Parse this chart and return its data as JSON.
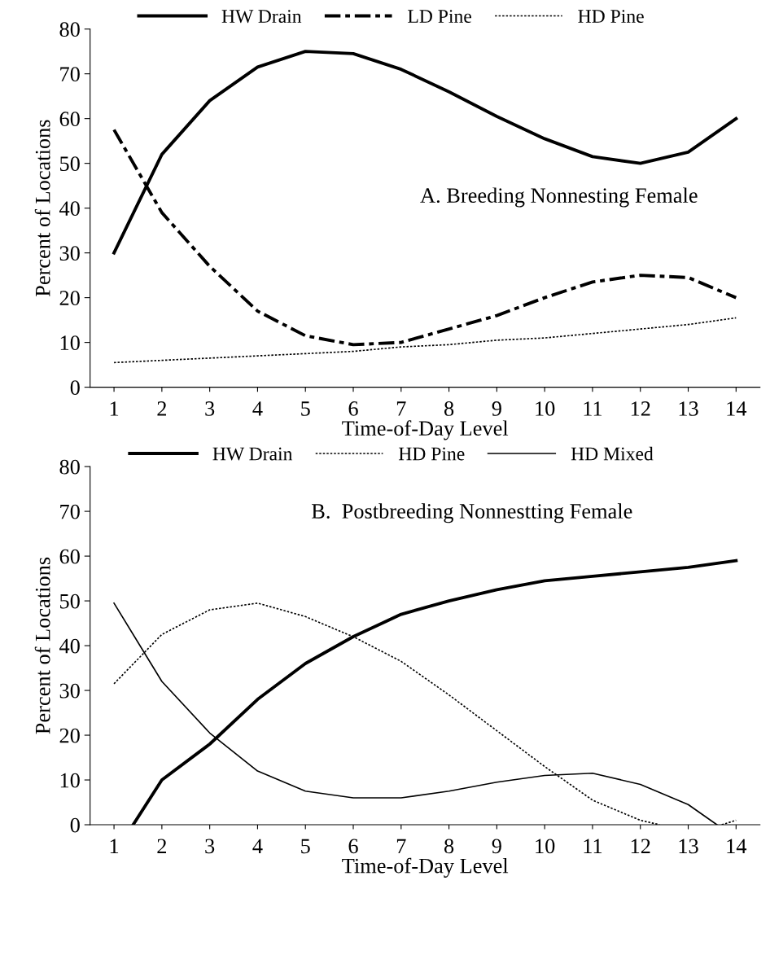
{
  "chart_data": [
    {
      "type": "line",
      "xlabel": "Time-of-Day Level",
      "ylabel": "Percent of Locations",
      "annotations": [
        "A. Breeding Nonnesting Female"
      ],
      "xlim": [
        0.5,
        14.5
      ],
      "xticks": [
        1,
        2,
        3,
        4,
        5,
        6,
        7,
        8,
        9,
        10,
        11,
        12,
        13,
        14
      ],
      "ylim": [
        0,
        80
      ],
      "yticks": [
        0,
        10,
        20,
        30,
        40,
        50,
        60,
        70,
        80
      ],
      "grid": false,
      "legend": "top",
      "marker": "none",
      "x": [
        1,
        2,
        3,
        4,
        5,
        6,
        7,
        8,
        9,
        10,
        11,
        12,
        13,
        14
      ],
      "series": [
        {
          "name": "HW Drain",
          "color": "#000000",
          "line_style": "solid",
          "values": [
            30,
            52,
            64,
            71.5,
            75,
            74.5,
            71,
            66,
            60.5,
            55.5,
            51.5,
            50,
            52.5,
            60
          ]
        },
        {
          "name": "LD Pine",
          "color": "#000000",
          "line_style": "dashed",
          "values": [
            57.5,
            39,
            27,
            17,
            11.5,
            9.5,
            10,
            13,
            16,
            20,
            23.5,
            25,
            24.5,
            20
          ]
        },
        {
          "name": "HD Pine",
          "color": "#000000",
          "line_style": "dotted",
          "values": [
            5.5,
            6,
            6.5,
            7,
            7.5,
            8,
            9,
            9.5,
            10.5,
            11,
            12,
            13,
            14,
            15.5
          ]
        }
      ]
    },
    {
      "type": "line",
      "xlabel": "Time-of-Day Level",
      "ylabel": "Percent of Locations",
      "annotations": [
        "B.  Postbreeding Nonnestting Female"
      ],
      "xlim": [
        0.5,
        14.5
      ],
      "xticks": [
        1,
        2,
        3,
        4,
        5,
        6,
        7,
        8,
        9,
        10,
        11,
        12,
        13,
        14
      ],
      "ylim": [
        0,
        80
      ],
      "yticks": [
        0,
        10,
        20,
        30,
        40,
        50,
        60,
        70,
        80
      ],
      "grid": false,
      "legend": "top",
      "marker": "none",
      "series": [
        {
          "name": "HW Drain",
          "color": "#000000",
          "line_style": "solid",
          "x": [
            1.4,
            2,
            3,
            4,
            5,
            6,
            7,
            8,
            9,
            10,
            11,
            12,
            13,
            14
          ],
          "values": [
            0,
            10,
            18,
            28,
            36,
            42,
            47,
            50,
            52.5,
            54.5,
            55.5,
            56.5,
            57.5,
            59
          ]
        },
        {
          "name": "HD Pine",
          "color": "#000000",
          "line_style": "dotted",
          "x": [
            1,
            2,
            3,
            4,
            5,
            6,
            7,
            8,
            9,
            10,
            11,
            12,
            12.4,
            13,
            13.7,
            14
          ],
          "values": [
            31.5,
            42.5,
            48,
            49.5,
            46.5,
            42,
            36.5,
            29,
            21,
            13,
            5.5,
            1,
            0,
            null,
            0,
            1
          ]
        },
        {
          "name": "HD Mixed",
          "color": "#000000",
          "line_style": "solid",
          "x": [
            1,
            2,
            3,
            4,
            5,
            6,
            7,
            8,
            9,
            10,
            11,
            12,
            13,
            13.6
          ],
          "values": [
            49.5,
            32,
            20.5,
            12,
            7.5,
            6,
            6,
            7.5,
            9.5,
            11,
            11.5,
            9,
            4.5,
            0
          ]
        }
      ]
    }
  ]
}
